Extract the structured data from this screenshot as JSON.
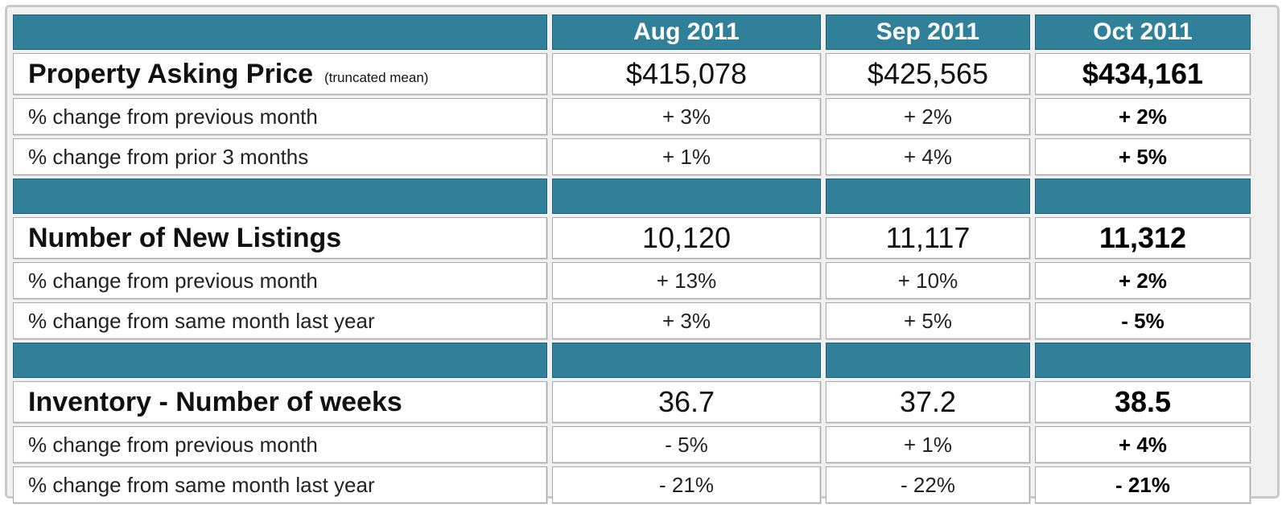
{
  "chart_data": {
    "type": "table",
    "columns": [
      "Aug 2011",
      "Sep 2011",
      "Oct 2011"
    ],
    "sections": [
      {
        "metric": "Property Asking Price",
        "note": "(truncated mean)",
        "values": [
          "$415,078",
          "$425,565",
          "$434,161"
        ],
        "rows": [
          {
            "label": "% change from previous month",
            "values": [
              "+ 3%",
              "+ 2%",
              "+ 2%"
            ]
          },
          {
            "label": "% change from prior 3 months",
            "values": [
              "+ 1%",
              "+ 4%",
              "+ 5%"
            ]
          }
        ]
      },
      {
        "metric": "Number of New Listings",
        "note": "",
        "values": [
          "10,120",
          "11,117",
          "11,312"
        ],
        "rows": [
          {
            "label": "% change from previous month",
            "values": [
              "+ 13%",
              "+ 10%",
              "+ 2%"
            ]
          },
          {
            "label": "% change from same month last year",
            "values": [
              "+ 3%",
              "+ 5%",
              "- 5%"
            ]
          }
        ]
      },
      {
        "metric": "Inventory - Number of weeks",
        "note": "",
        "values": [
          "36.7",
          "37.2",
          "38.5"
        ],
        "rows": [
          {
            "label": "% change from previous month",
            "values": [
              "- 5%",
              "+ 1%",
              "+ 4%"
            ]
          },
          {
            "label": "% change from same month last year",
            "values": [
              "- 21%",
              "- 22%",
              "- 21%"
            ]
          }
        ]
      }
    ]
  },
  "colors": {
    "header_bar": "#2f8098",
    "header_text": "#ffffff",
    "cell_bg": "#ffffff",
    "frame_bg": "#f1f1f1"
  }
}
